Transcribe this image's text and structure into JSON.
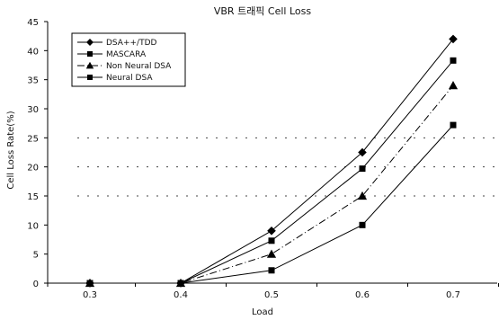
{
  "chart_data": {
    "type": "line",
    "title": "VBR 트래픽 Cell Loss",
    "xlabel": "Load",
    "ylabel": "Cell Loss Rate(%)",
    "x": [
      0.3,
      0.4,
      0.5,
      0.6,
      0.7
    ],
    "x_tick_labels": [
      "0.3",
      "0.4",
      "0.5",
      "0.6",
      "0.7"
    ],
    "ylim": [
      0,
      45
    ],
    "y_ticks": [
      0,
      5,
      10,
      15,
      20,
      25,
      30,
      35,
      40,
      45
    ],
    "gridlines_dashed": [
      15,
      20,
      25
    ],
    "legend_position": "top-left",
    "series": [
      {
        "name": "DSA++/TDD",
        "marker": "diamond",
        "line": "solid",
        "values": [
          0,
          0,
          9,
          22.5,
          42
        ]
      },
      {
        "name": "MASCARA",
        "marker": "square",
        "line": "solid",
        "values": [
          0,
          0,
          7.3,
          19.7,
          38.3
        ]
      },
      {
        "name": "Non Neural DSA",
        "marker": "triangle",
        "line": "dashdot",
        "values": [
          0,
          0,
          5,
          15,
          34
        ]
      },
      {
        "name": "Neural DSA",
        "marker": "square",
        "line": "solid",
        "values": [
          0,
          0,
          2.2,
          10,
          27.2
        ]
      }
    ]
  }
}
